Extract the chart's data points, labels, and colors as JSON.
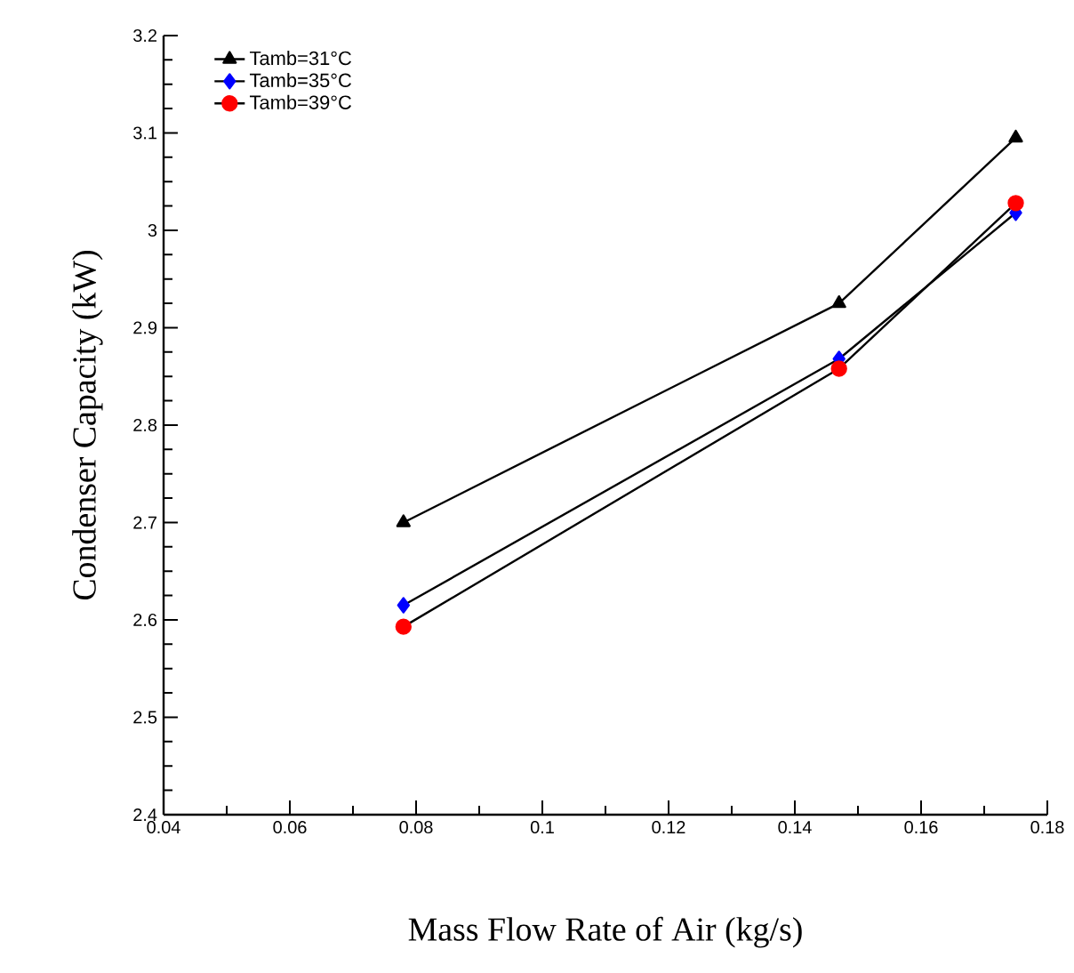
{
  "chart_data": {
    "type": "line",
    "xlabel": "Mass Flow Rate of Air (kg/s)",
    "ylabel": "Condenser Capacity (kW)",
    "x": [
      0.078,
      0.147,
      0.175
    ],
    "series": [
      {
        "name": "Tamb=31°C",
        "color": "#000000",
        "marker": "triangle",
        "values": [
          2.7,
          2.925,
          3.095
        ]
      },
      {
        "name": "Tamb=35°C",
        "color": "#0000ff",
        "marker": "diamond",
        "values": [
          2.615,
          2.868,
          3.018
        ]
      },
      {
        "name": "Tamb=39°C",
        "color": "#ff0000",
        "marker": "circle",
        "values": [
          2.593,
          2.858,
          3.028
        ]
      }
    ],
    "xlim": [
      0.04,
      0.18
    ],
    "xticks": [
      0.04,
      0.06,
      0.08,
      0.1,
      0.12,
      0.14,
      0.16,
      0.18
    ],
    "ylim": [
      2.4,
      3.2
    ],
    "yticks": [
      2.4,
      2.5,
      2.6,
      2.7,
      2.8,
      2.9,
      3,
      3.1,
      3.2
    ],
    "grid": false,
    "legend": "top left",
    "line_style": "solid"
  }
}
